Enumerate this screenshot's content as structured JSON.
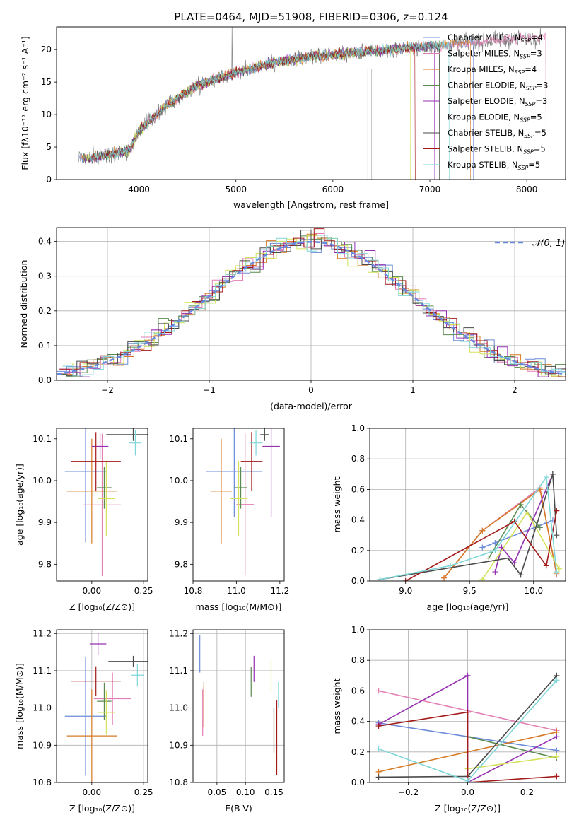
{
  "figure_title": "PLATE=0464, MJD=51908, FIBERID=0306, z=0.124",
  "colors": {
    "chabrier_miles": "#6b8bd8",
    "salpeter_miles": "#e37fb5",
    "kroupa_miles": "#d67a25",
    "chabrier_elodie": "#5a8a4f",
    "salpeter_elodie": "#9530b0",
    "kroupa_elodie": "#d4e25a",
    "chabrier_stelib": "#4a4a4a",
    "salpeter_stelib": "#a31a1a",
    "kroupa_stelib": "#7fd6d8",
    "normal": "#6688dd"
  },
  "chart_data": [
    {
      "id": "spectrum",
      "type": "line",
      "title": "PLATE=0464, MJD=51908, FIBERID=0306, z=0.124",
      "xlabel": "wavelength [Angstrom, rest frame]",
      "ylabel": "Flux [fλ10⁻¹⁷ erg cm⁻² s⁻¹ A⁻¹]",
      "xlim": [
        3150,
        8400
      ],
      "ylim": [
        0,
        23.5
      ],
      "xticks": [
        "4000",
        "5000",
        "6000",
        "7000",
        "8000"
      ],
      "yticks": [
        "0",
        "5",
        "10",
        "15",
        "20"
      ],
      "legend": "upper-right",
      "legend_entries": [
        {
          "model": "Chabrier MILES",
          "nssp": "4"
        },
        {
          "model": "Salpeter MILES",
          "nssp": "3"
        },
        {
          "model": "Kroupa MILES",
          "nssp": "4"
        },
        {
          "model": "Chabrier ELODIE",
          "nssp": "3"
        },
        {
          "model": "Salpeter ELODIE",
          "nssp": "3"
        },
        {
          "model": "Kroupa ELODIE",
          "nssp": "5"
        },
        {
          "model": "Chabrier STELIB",
          "nssp": "5"
        },
        {
          "model": "Salpeter STELIB",
          "nssp": "5"
        },
        {
          "model": "Kroupa STELIB",
          "nssp": "5"
        }
      ],
      "continuum": {
        "x": [
          3380,
          3500,
          3700,
          3900,
          4000,
          4300,
          4600,
          5000,
          5400,
          5800,
          6200,
          6600,
          7000,
          7400,
          7800,
          8150
        ],
        "y": [
          3.5,
          3.2,
          4.0,
          4.5,
          7.5,
          11.5,
          14.5,
          16.5,
          18.0,
          19.0,
          19.5,
          20.0,
          20.5,
          21.0,
          21.5,
          22.0
        ]
      },
      "model_end_x": [
        7450,
        8200,
        7420,
        7100,
        7050,
        6800,
        7100,
        6850,
        7200
      ]
    },
    {
      "id": "residuals",
      "type": "line",
      "xlabel": "(data-model)/error",
      "ylabel": "Normed distribution",
      "xlim": [
        -2.5,
        2.5
      ],
      "ylim": [
        0,
        0.44
      ],
      "xticks": [
        "−2",
        "−1",
        "0",
        "1",
        "2"
      ],
      "yticks": [
        "0.0",
        "0.1",
        "0.2",
        "0.3",
        "0.4"
      ],
      "grid": true,
      "legend": "upper-right",
      "normal_label": "𝒩(0, 1)",
      "bin_width": 0.1
    },
    {
      "id": "age-vs-z",
      "type": "scatter",
      "xlabel": "Z [log₁₀(Z/Z⊙)]",
      "ylabel": "age  [log₁₀(age/yr)]",
      "xlim": [
        -0.17,
        0.27
      ],
      "ylim": [
        9.76,
        10.125
      ],
      "xticks": [
        "0.00",
        "0.25"
      ],
      "yticks": [
        "9.8",
        "9.9",
        "10.0",
        "10.1"
      ],
      "points": [
        {
          "x": -0.03,
          "y": 10.022,
          "xe": 0.1,
          "ye": 0.17
        },
        {
          "x": 0.05,
          "y": 9.942,
          "xe": 0.09,
          "ye": 0.17
        },
        {
          "x": 0.0,
          "y": 9.975,
          "xe": 0.12,
          "ye": 0.125
        },
        {
          "x": 0.06,
          "y": 9.983,
          "xe": 0.035,
          "ye": 0.05
        },
        {
          "x": 0.04,
          "y": 10.082,
          "xe": 0.04,
          "ye": 0.03
        },
        {
          "x": 0.07,
          "y": 9.957,
          "xe": 0.04,
          "ye": 0.09
        },
        {
          "x": 0.2,
          "y": 10.11,
          "xe": 0.13,
          "ye": 0.015
        },
        {
          "x": 0.02,
          "y": 10.046,
          "xe": 0.12,
          "ye": 0.07
        },
        {
          "x": 0.21,
          "y": 10.09,
          "xe": 0.03,
          "ye": 0.03
        }
      ]
    },
    {
      "id": "age-vs-mass",
      "type": "scatter",
      "xlabel": "mass [log₁₀(M/M⊙)]",
      "ylabel": "",
      "xlim": [
        10.8,
        11.22
      ],
      "ylim": [
        9.76,
        10.125
      ],
      "xticks": [
        "10.8",
        "11.0",
        "11.2"
      ],
      "yticks": [
        "9.8",
        "9.9",
        "10.0",
        "10.1"
      ],
      "points": [
        {
          "x": 10.99,
          "y": 10.022,
          "xe": 0.13,
          "ye": 0.11
        },
        {
          "x": 11.04,
          "y": 9.943,
          "xe": 0.04,
          "ye": 0.17
        },
        {
          "x": 10.93,
          "y": 9.975,
          "xe": 0.05,
          "ye": 0.125
        },
        {
          "x": 11.02,
          "y": 9.983,
          "xe": 0.03,
          "ye": 0.05
        },
        {
          "x": 11.16,
          "y": 10.082,
          "xe": 0.04,
          "ye": 0.17
        },
        {
          "x": 11.01,
          "y": 9.957,
          "xe": 0.04,
          "ye": 0.09
        },
        {
          "x": 11.13,
          "y": 10.11,
          "xe": 0.02,
          "ye": 0.015
        },
        {
          "x": 11.07,
          "y": 10.046,
          "xe": 0.05,
          "ye": 0.07
        },
        {
          "x": 11.09,
          "y": 10.09,
          "xe": 0.03,
          "ye": 0.03
        }
      ]
    },
    {
      "id": "mass-weight-vs-age",
      "type": "line",
      "xlabel": "age  [log₁₀(age/yr)]",
      "ylabel": "mass weight",
      "xlim": [
        8.72,
        10.25
      ],
      "ylim": [
        0,
        1
      ],
      "xticks": [
        "9.0",
        "9.5",
        "10.0"
      ],
      "yticks": [
        "0.0",
        "0.2",
        "0.4",
        "0.6",
        "0.8",
        "1.0"
      ],
      "grid": true,
      "series": [
        {
          "x": [
            9.6,
            9.7,
            10.1,
            10.15
          ],
          "y": [
            0.22,
            0.25,
            0.38,
            0.4
          ]
        },
        {
          "x": [
            9.3,
            9.6,
            10.05,
            10.18
          ],
          "y": [
            0.02,
            0.33,
            0.61,
            0.04
          ]
        },
        {
          "x": [
            9.3,
            9.6,
            10.05,
            10.18
          ],
          "y": [
            0.02,
            0.33,
            0.6,
            0.05
          ]
        },
        {
          "x": [
            9.65,
            9.9,
            10.05
          ],
          "y": [
            0.15,
            0.5,
            0.35
          ]
        },
        {
          "x": [
            9.7,
            9.75,
            9.85,
            10.15
          ],
          "y": [
            0.06,
            0.22,
            0.12,
            0.7
          ]
        },
        {
          "x": [
            9.6,
            9.95,
            10.2
          ],
          "y": [
            0.01,
            0.45,
            0.08
          ]
        },
        {
          "x": [
            8.8,
            9.8,
            9.9,
            10.15,
            10.18
          ],
          "y": [
            0.01,
            0.15,
            0.04,
            0.7,
            0.3
          ]
        },
        {
          "x": [
            9.0,
            9.85,
            10.1,
            10.18
          ],
          "y": [
            0.0,
            0.39,
            0.1,
            0.46
          ]
        },
        {
          "x": [
            8.8,
            9.35,
            9.7,
            10.1,
            10.18
          ],
          "y": [
            0.01,
            0.1,
            0.2,
            0.68,
            0.06
          ]
        }
      ]
    },
    {
      "id": "mass-vs-z",
      "type": "scatter",
      "xlabel": "Z [log₁₀(Z/Z⊙)]",
      "ylabel": "mass [log₁₀(M/M⊙)]",
      "xlim": [
        -0.17,
        0.27
      ],
      "ylim": [
        10.8,
        11.21
      ],
      "xticks": [
        "0.00",
        "0.25"
      ],
      "yticks": [
        "10.8",
        "10.9",
        "11.0",
        "11.1",
        "11.2"
      ],
      "grid": true,
      "points": [
        {
          "x": -0.03,
          "y": 10.978,
          "xe": 0.1,
          "ye": 0.16
        },
        {
          "x": 0.1,
          "y": 11.025,
          "xe": 0.09,
          "ye": 0.07
        },
        {
          "x": 0.0,
          "y": 10.925,
          "xe": 0.12,
          "ye": 0.125
        },
        {
          "x": 0.06,
          "y": 11.018,
          "xe": 0.035,
          "ye": 0.05
        },
        {
          "x": 0.03,
          "y": 11.172,
          "xe": 0.04,
          "ye": 0.03
        },
        {
          "x": 0.07,
          "y": 10.988,
          "xe": 0.04,
          "ye": 0.06
        },
        {
          "x": 0.2,
          "y": 11.125,
          "xe": 0.12,
          "ye": 0.015
        },
        {
          "x": 0.02,
          "y": 11.072,
          "xe": 0.12,
          "ye": 0.04
        },
        {
          "x": 0.22,
          "y": 11.088,
          "xe": 0.03,
          "ye": 0.03
        }
      ]
    },
    {
      "id": "mass-vs-ebv",
      "type": "scatter",
      "xlabel": "E(B-V)",
      "ylabel": "",
      "xlim": [
        0.008,
        0.168
      ],
      "ylim": [
        10.8,
        11.21
      ],
      "xticks": [
        "0.05",
        "0.10",
        "0.15"
      ],
      "yticks": [
        "10.8",
        "10.9",
        "11.0",
        "11.1",
        "11.2"
      ],
      "grid": true,
      "segments": [
        {
          "x": 0.02,
          "y0": 11.095,
          "y1": 11.195
        },
        {
          "x": 0.025,
          "y0": 10.925,
          "y1": 11.05
        },
        {
          "x": 0.027,
          "y0": 10.95,
          "y1": 11.07
        },
        {
          "x": 0.11,
          "y0": 11.03,
          "y1": 11.11
        },
        {
          "x": 0.115,
          "y0": 11.07,
          "y1": 11.14
        },
        {
          "x": 0.145,
          "y0": 11.04,
          "y1": 11.13
        },
        {
          "x": 0.15,
          "y0": 10.88,
          "y1": 11.0
        },
        {
          "x": 0.155,
          "y0": 10.82,
          "y1": 11.02
        },
        {
          "x": 0.158,
          "y0": 11.0,
          "y1": 11.07
        }
      ]
    },
    {
      "id": "mass-weight-vs-z",
      "type": "line",
      "xlabel": "Z [log₁₀(Z/Z⊙)]",
      "ylabel": "mass weight",
      "xlim": [
        -0.33,
        0.33
      ],
      "ylim": [
        0,
        1
      ],
      "xticks": [
        "−0.2",
        "0.0",
        "0.2"
      ],
      "yticks": [
        "0.0",
        "0.2",
        "0.4",
        "0.6",
        "0.8",
        "1.0"
      ],
      "grid": true,
      "series": [
        {
          "x": [
            -0.3,
            0.0,
            0.3
          ],
          "y": [
            0.39,
            0.3,
            0.21
          ]
        },
        {
          "x": [
            -0.3,
            0.3
          ],
          "y": [
            0.6,
            0.34
          ]
        },
        {
          "x": [
            -0.3,
            0.3
          ],
          "y": [
            0.07,
            0.33
          ]
        },
        {
          "x": [
            0.0,
            0.3
          ],
          "y": [
            0.3,
            0.16
          ]
        },
        {
          "x": [
            -0.3,
            0.0,
            0.0,
            0.3
          ],
          "y": [
            0.38,
            0.7,
            0.0,
            0.3
          ]
        },
        {
          "x": [
            0.0,
            0.3
          ],
          "y": [
            0.09,
            0.17
          ]
        },
        {
          "x": [
            -0.3,
            0.0,
            0.3
          ],
          "y": [
            0.035,
            0.04,
            0.7
          ]
        },
        {
          "x": [
            -0.3,
            0.0,
            0.0,
            0.3
          ],
          "y": [
            0.37,
            0.46,
            0.0,
            0.04
          ]
        },
        {
          "x": [
            -0.3,
            0.0,
            0.3
          ],
          "y": [
            0.22,
            0.01,
            0.67
          ]
        }
      ]
    }
  ]
}
